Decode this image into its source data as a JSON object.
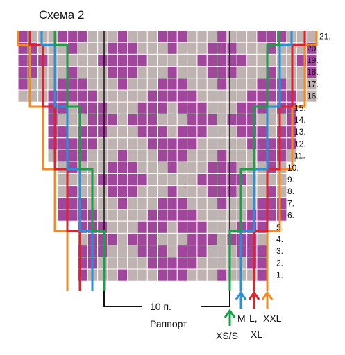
{
  "title": "Схема 2",
  "row_labels": [
    "1.",
    "2.",
    "3.",
    "4.",
    "5.",
    "6.",
    "7.",
    "8.",
    "9.",
    "10.",
    "11.",
    "12.",
    "13.",
    "14.",
    "15.",
    "16.",
    "17.",
    "18.",
    "19.",
    "20.",
    "21."
  ],
  "repeat_label_line1": "10 п.",
  "repeat_label_line2": "Раппорт",
  "size_labels": {
    "xs_s": "XS/S",
    "m": "M",
    "l": "L,",
    "xl": "XL",
    "xxl": "XXL"
  },
  "colors": {
    "purple": "#a0479c",
    "grey": "#bfb3b1",
    "green": "#18a048",
    "blue": "#2690d8",
    "red": "#e0202a",
    "orange": "#f58a1f"
  },
  "chart_data": {
    "type": "knitting-chart",
    "columns": 30,
    "rows": 21,
    "repeat_stitches": 10,
    "sizes": [
      "XS/S",
      "M",
      "L",
      "XL",
      "XXL"
    ]
  }
}
